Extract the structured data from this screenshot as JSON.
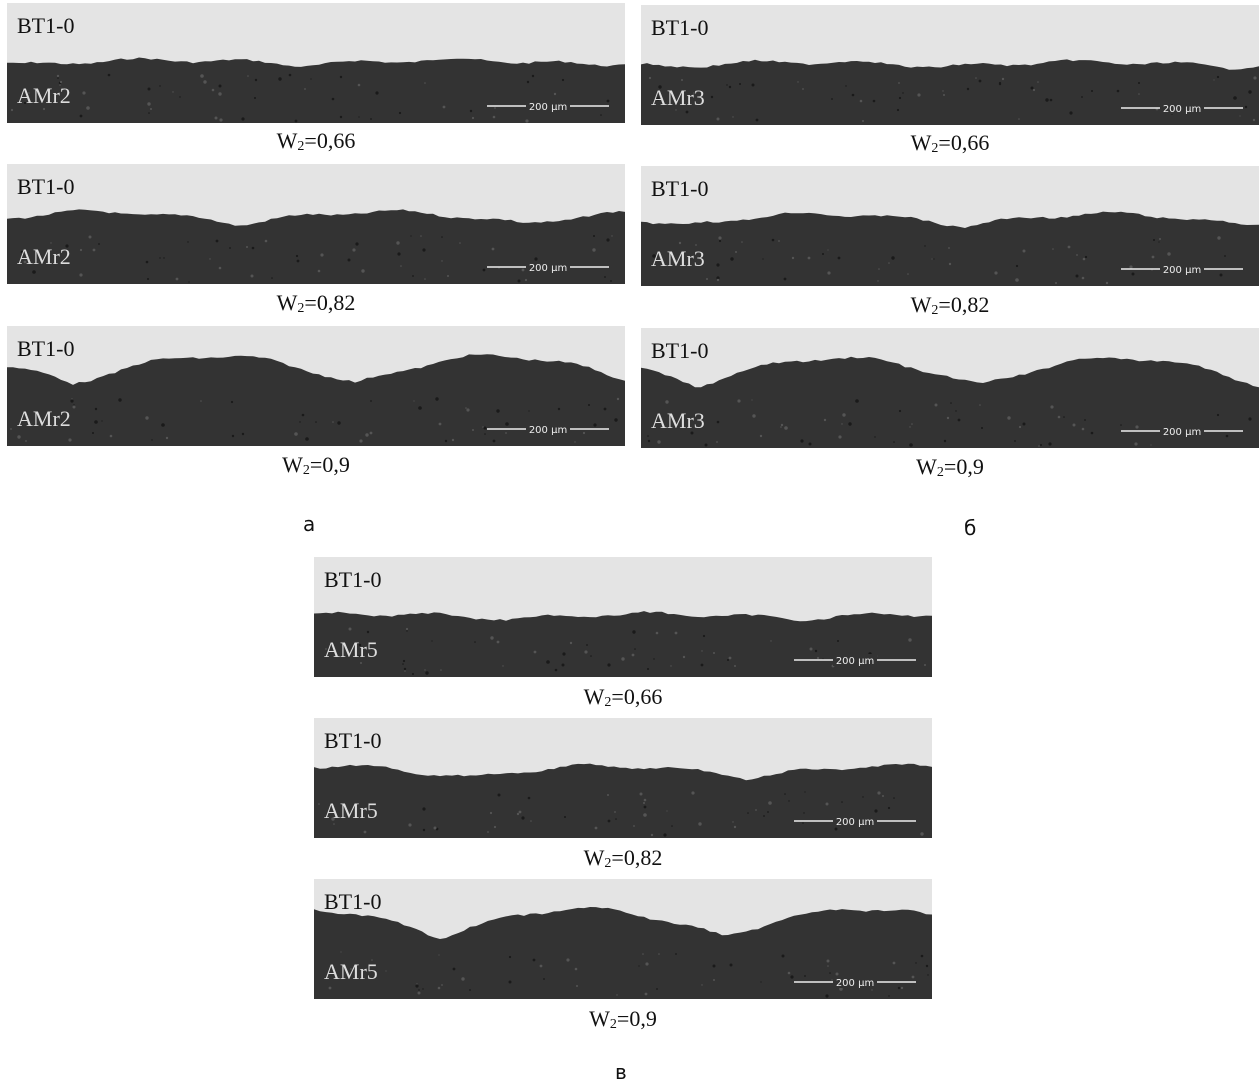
{
  "groups": [
    {
      "label": "а",
      "panels": [
        {
          "top": "BT1-0",
          "bottom": "AMr2",
          "scale": "200 μm",
          "caption": [
            "W",
            "2",
            "=0,66"
          ]
        },
        {
          "top": "BT1-0",
          "bottom": "AMr2",
          "scale": "200 μm",
          "caption": [
            "W",
            "2",
            "=0,82"
          ]
        },
        {
          "top": "BT1-0",
          "bottom": "AMr2",
          "scale": "200 μm",
          "caption": [
            "W",
            "2",
            "=0,9"
          ]
        }
      ]
    },
    {
      "label": "б",
      "panels": [
        {
          "top": "BT1-0",
          "bottom": "AMr3",
          "scale": "200 μm",
          "caption": [
            "W",
            "2",
            "=0,66"
          ]
        },
        {
          "top": "BT1-0",
          "bottom": "AMr3",
          "scale": "200 μm",
          "caption": [
            "W",
            "2",
            "=0,82"
          ]
        },
        {
          "top": "BT1-0",
          "bottom": "AMr3",
          "scale": "200 μm",
          "caption": [
            "W",
            "2",
            "=0,9"
          ]
        }
      ]
    },
    {
      "label": "в",
      "panels": [
        {
          "top": "BT1-0",
          "bottom": "AMr5",
          "scale": "200 μm",
          "caption": [
            "W",
            "2",
            "=0,66"
          ]
        },
        {
          "top": "BT1-0",
          "bottom": "AMr5",
          "scale": "200 μm",
          "caption": [
            "W",
            "2",
            "=0,82"
          ]
        },
        {
          "top": "BT1-0",
          "bottom": "AMr5",
          "scale": "200 μm",
          "caption": [
            "W",
            "2",
            "=0,9"
          ]
        }
      ]
    }
  ]
}
